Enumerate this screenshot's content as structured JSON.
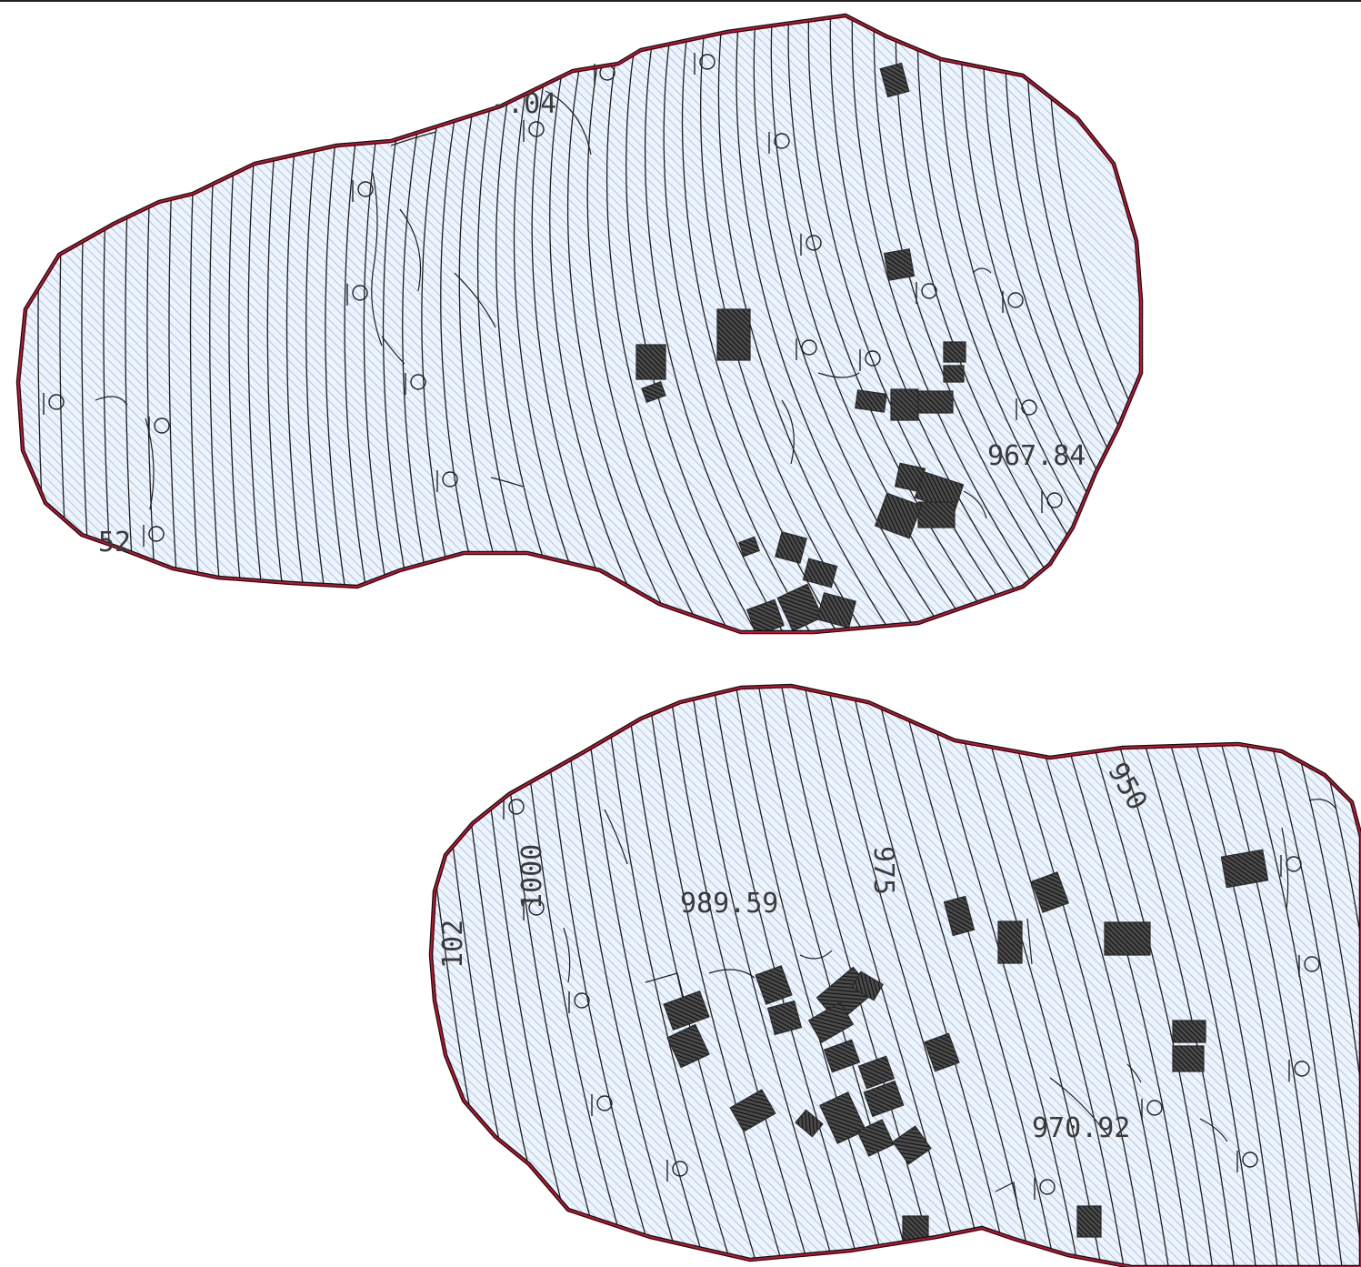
{
  "map": {
    "colors": {
      "hatch": "#8fb2de",
      "fill_bg": "#eef4fb",
      "boundary": "#111111",
      "boundary_inner": "#c8102e",
      "contour": "#1e1e1e",
      "building": "#2e2e2e"
    },
    "north_area": {
      "labels": [
        {
          "id": "n-elev-1",
          "text": "-.04"
        },
        {
          "id": "n-elev-2",
          "text": "967.84"
        },
        {
          "id": "n-elev-3",
          "text": "52"
        }
      ]
    },
    "south_area": {
      "labels": [
        {
          "id": "s-elev-1",
          "text": "989.59"
        },
        {
          "id": "s-elev-2",
          "text": "975"
        },
        {
          "id": "s-elev-3",
          "text": "950"
        },
        {
          "id": "s-elev-4",
          "text": "1000"
        },
        {
          "id": "s-elev-5",
          "text": "102"
        },
        {
          "id": "s-elev-6",
          "text": "970.92"
        }
      ]
    },
    "icons": [
      "tree-symbol-icon",
      "building-footprint-icon",
      "boundary-line-icon"
    ]
  }
}
